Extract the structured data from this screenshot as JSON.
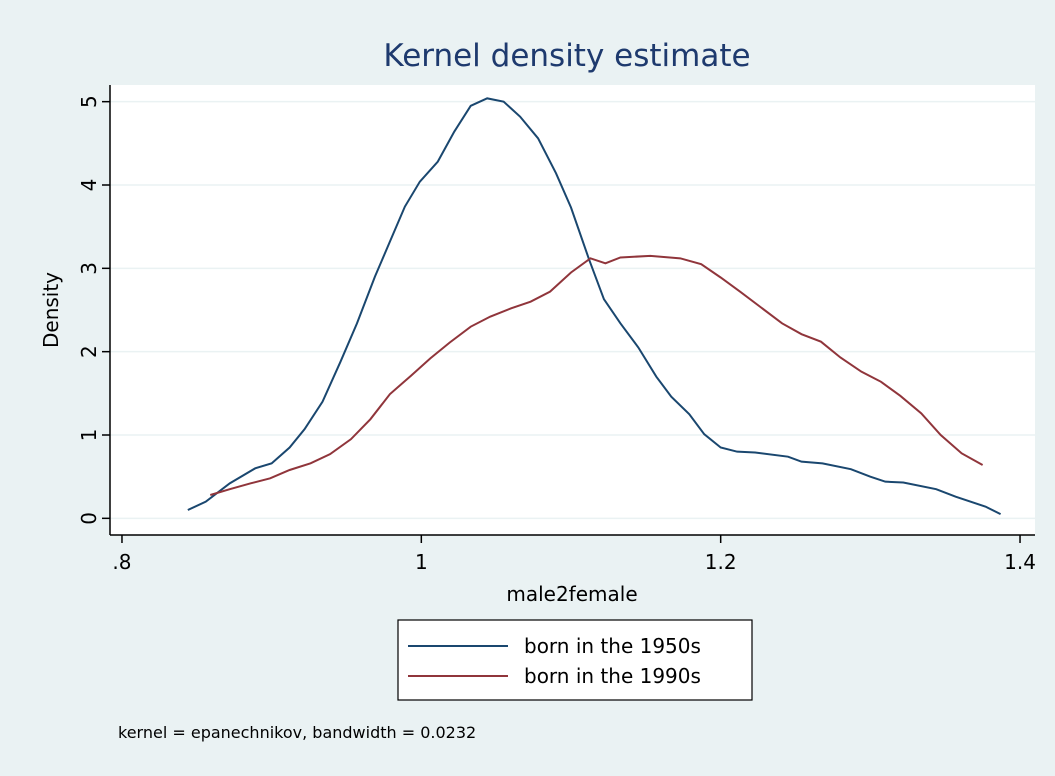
{
  "chart_data": {
    "type": "line",
    "title": "Kernel density estimate",
    "xlabel": "male2female",
    "ylabel": "Density",
    "note": "kernel = epanechnikov, bandwidth = 0.0232",
    "xlim": [
      0.792,
      1.41
    ],
    "ylim": [
      -0.2,
      5.2
    ],
    "xticks": [
      {
        "value": 0.8,
        "label": ".8"
      },
      1,
      1.2,
      1.4
    ],
    "yticks": [
      0,
      1,
      2,
      3,
      4,
      5
    ],
    "grid": true,
    "legend": "bottom",
    "series": [
      {
        "name": "born in the 1950s",
        "color": "#1a476f",
        "x": [
          0.844,
          0.856,
          0.872,
          0.889,
          0.9,
          0.912,
          0.922,
          0.934,
          0.946,
          0.957,
          0.969,
          0.979,
          0.989,
          0.999,
          1.011,
          1.022,
          1.033,
          1.044,
          1.055,
          1.066,
          1.078,
          1.09,
          1.1,
          1.112,
          1.122,
          1.133,
          1.145,
          1.157,
          1.167,
          1.179,
          1.189,
          1.2,
          1.211,
          1.223,
          1.245,
          1.254,
          1.268,
          1.287,
          1.3,
          1.31,
          1.322,
          1.344,
          1.357,
          1.377,
          1.387
        ],
        "values": [
          0.1,
          0.2,
          0.42,
          0.6,
          0.66,
          0.85,
          1.07,
          1.4,
          1.88,
          2.34,
          2.9,
          3.32,
          3.74,
          4.04,
          4.28,
          4.64,
          4.95,
          5.04,
          5.0,
          4.82,
          4.56,
          4.14,
          3.73,
          3.11,
          2.63,
          2.34,
          2.05,
          1.7,
          1.46,
          1.25,
          1.01,
          0.85,
          0.8,
          0.79,
          0.74,
          0.68,
          0.66,
          0.59,
          0.5,
          0.44,
          0.43,
          0.35,
          0.26,
          0.14,
          0.05
        ]
      },
      {
        "name": "born in the 1990s",
        "color": "#90353b",
        "x": [
          0.859,
          0.872,
          0.886,
          0.899,
          0.912,
          0.926,
          0.939,
          0.953,
          0.966,
          0.979,
          0.993,
          1.006,
          1.019,
          1.033,
          1.046,
          1.06,
          1.073,
          1.086,
          1.1,
          1.113,
          1.123,
          1.133,
          1.153,
          1.173,
          1.187,
          1.2,
          1.213,
          1.227,
          1.241,
          1.254,
          1.267,
          1.28,
          1.294,
          1.307,
          1.32,
          1.334,
          1.347,
          1.361,
          1.375
        ],
        "values": [
          0.28,
          0.35,
          0.42,
          0.48,
          0.58,
          0.66,
          0.77,
          0.95,
          1.19,
          1.49,
          1.71,
          1.92,
          2.11,
          2.3,
          2.42,
          2.52,
          2.6,
          2.72,
          2.95,
          3.12,
          3.06,
          3.13,
          3.15,
          3.12,
          3.05,
          2.89,
          2.72,
          2.53,
          2.34,
          2.21,
          2.12,
          1.93,
          1.76,
          1.64,
          1.47,
          1.26,
          1.0,
          0.78,
          0.64
        ]
      }
    ]
  }
}
